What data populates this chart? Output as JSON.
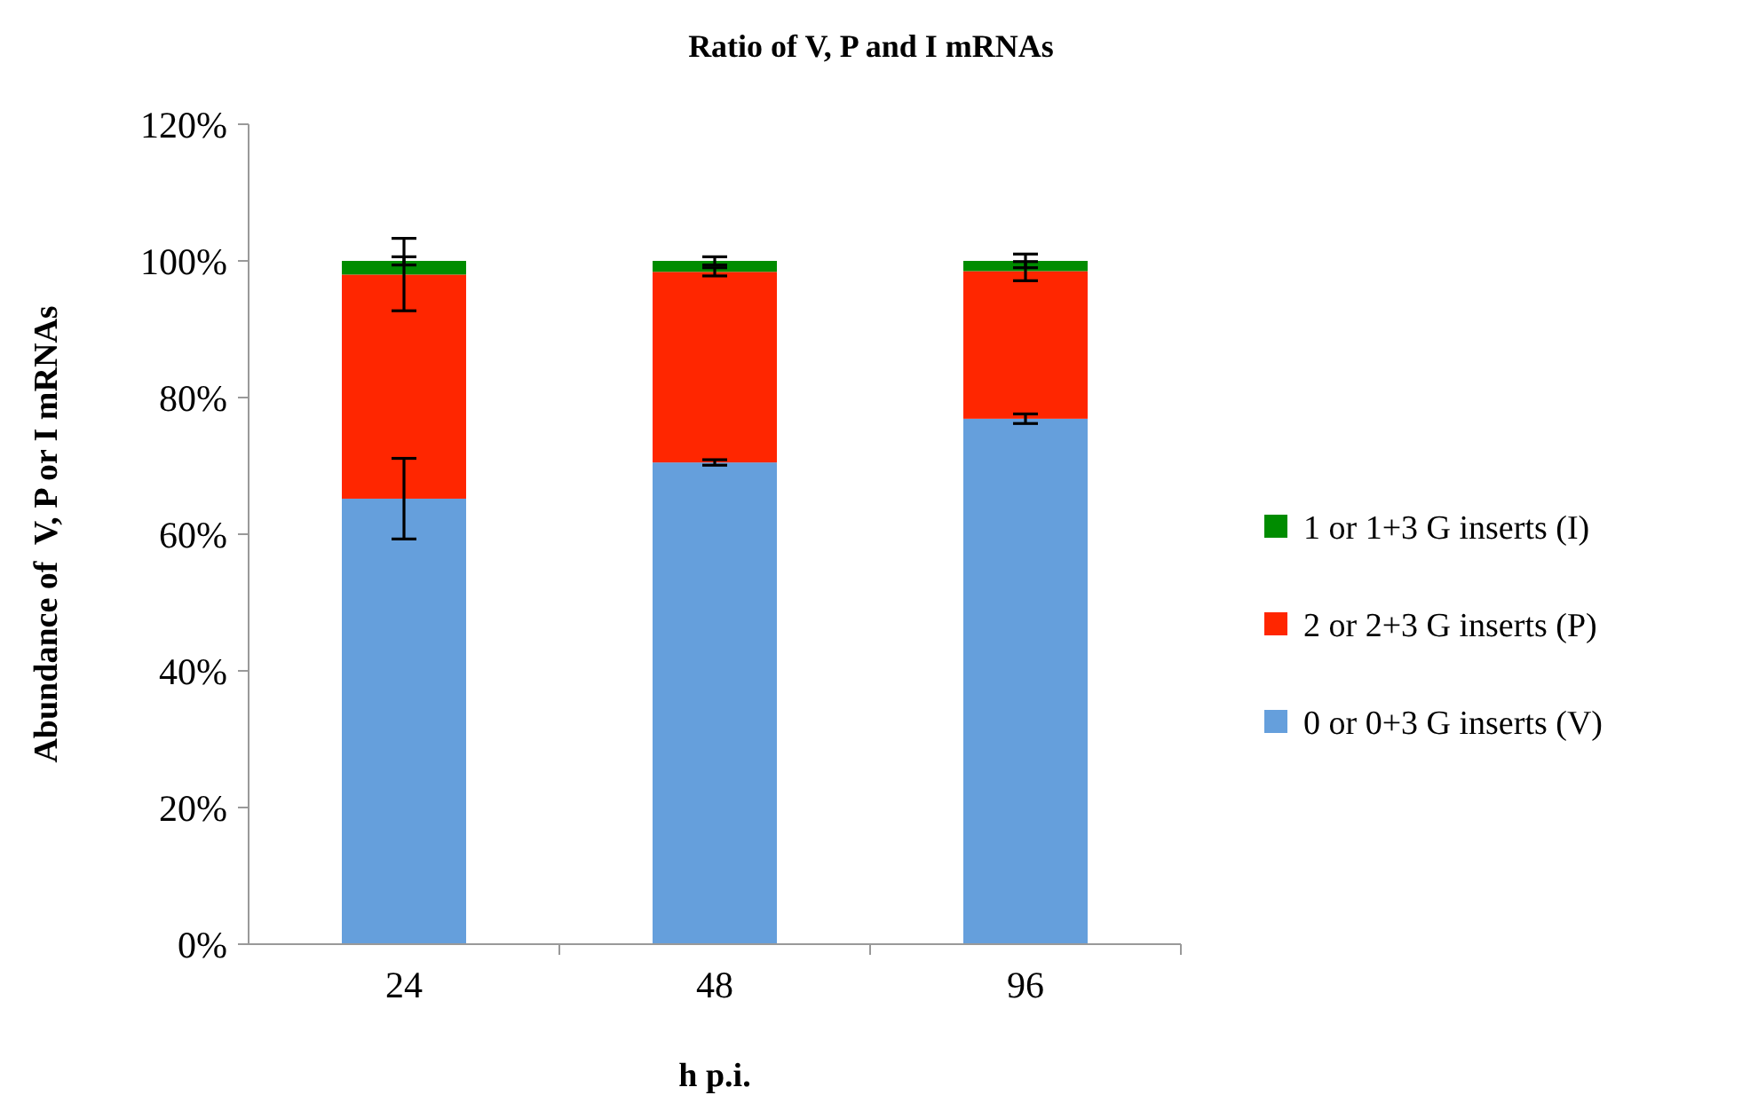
{
  "chart_data": {
    "type": "bar",
    "title": "Ratio of V, P and I mRNAs",
    "xlabel": "h p.i.",
    "ylabel": "Abundance of  V, P or I mRNAs",
    "categories": [
      "24",
      "48",
      "96"
    ],
    "stacked": true,
    "legend": "right",
    "ylim": [
      0,
      120
    ],
    "yticks": [
      {
        "value": 0,
        "label": "0%"
      },
      {
        "value": 20,
        "label": "20%"
      },
      {
        "value": 40,
        "label": "40%"
      },
      {
        "value": 60,
        "label": "60%"
      },
      {
        "value": 80,
        "label": "80%"
      },
      {
        "value": 100,
        "label": "100%"
      },
      {
        "value": 120,
        "label": "120%"
      }
    ],
    "series": [
      {
        "name": "0 or 0+3 G inserts (V)",
        "color": "#659fdc",
        "values": [
          65.2,
          70.5,
          76.9
        ],
        "errors": [
          5.9,
          0.4,
          0.7
        ]
      },
      {
        "name": "2 or 2+3 G inserts (P)",
        "color": "#ff2600",
        "values": [
          32.8,
          27.9,
          21.6
        ],
        "errors": [
          5.3,
          0.6,
          1.4
        ]
      },
      {
        "name": "1 or 1+3 G inserts (I)",
        "color": "#008c00",
        "values": [
          2.0,
          1.6,
          1.5
        ],
        "errors": [
          0.6,
          0.6,
          1.0
        ]
      }
    ]
  }
}
